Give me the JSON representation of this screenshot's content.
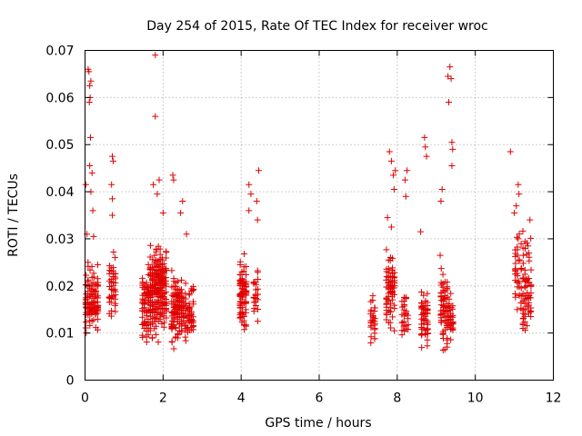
{
  "chart_data": {
    "type": "scatter",
    "title": "Day 254 of 2015, Rate Of TEC Index for receiver wroc",
    "xlabel": "GPS time / hours",
    "ylabel": "ROTI / TECUs",
    "xlim": [
      0,
      12
    ],
    "ylim": [
      0,
      0.07
    ],
    "x_ticks": [
      0,
      2,
      4,
      6,
      8,
      10,
      12
    ],
    "x_tick_labels": [
      "0",
      "2",
      "4",
      "6",
      "8",
      "10",
      "12"
    ],
    "y_ticks": [
      0,
      0.01,
      0.02,
      0.03,
      0.04,
      0.05,
      0.06,
      0.07
    ],
    "y_tick_labels": [
      "0",
      "0.01",
      "0.02",
      "0.03",
      "0.04",
      "0.05",
      "0.06",
      "0.07"
    ],
    "grid": true,
    "marker": "+",
    "color": "#e00000",
    "series": [
      {
        "name": "ROTI",
        "clusters": [
          {
            "x_range": [
              0.0,
              0.35
            ],
            "y_range": [
              0.007,
              0.027
            ],
            "count": 120
          },
          {
            "x_range": [
              0.6,
              0.8
            ],
            "y_range": [
              0.008,
              0.03
            ],
            "count": 45
          },
          {
            "x_range": [
              1.45,
              1.65
            ],
            "y_range": [
              0.005,
              0.028
            ],
            "count": 70
          },
          {
            "x_range": [
              1.65,
              2.1
            ],
            "y_range": [
              0.006,
              0.032
            ],
            "count": 260
          },
          {
            "x_range": [
              2.2,
              2.5
            ],
            "y_range": [
              0.005,
              0.025
            ],
            "count": 120
          },
          {
            "x_range": [
              2.5,
              2.8
            ],
            "y_range": [
              0.007,
              0.022
            ],
            "count": 70
          },
          {
            "x_range": [
              3.95,
              4.15
            ],
            "y_range": [
              0.008,
              0.028
            ],
            "count": 90
          },
          {
            "x_range": [
              4.3,
              4.45
            ],
            "y_range": [
              0.01,
              0.027
            ],
            "count": 25
          },
          {
            "x_range": [
              7.3,
              7.45
            ],
            "y_range": [
              0.006,
              0.019
            ],
            "count": 30
          },
          {
            "x_range": [
              7.7,
              7.95
            ],
            "y_range": [
              0.008,
              0.03
            ],
            "count": 80
          },
          {
            "x_range": [
              8.1,
              8.3
            ],
            "y_range": [
              0.007,
              0.02
            ],
            "count": 30
          },
          {
            "x_range": [
              8.6,
              8.8
            ],
            "y_range": [
              0.005,
              0.022
            ],
            "count": 60
          },
          {
            "x_range": [
              9.1,
              9.3
            ],
            "y_range": [
              0.004,
              0.026
            ],
            "count": 70
          },
          {
            "x_range": [
              9.3,
              9.45
            ],
            "y_range": [
              0.007,
              0.02
            ],
            "count": 30
          },
          {
            "x_range": [
              11.0,
              11.2
            ],
            "y_range": [
              0.01,
              0.035
            ],
            "count": 40
          },
          {
            "x_range": [
              11.2,
              11.45
            ],
            "y_range": [
              0.006,
              0.033
            ],
            "count": 70
          }
        ],
        "outliers": [
          [
            0.02,
            0.0415
          ],
          [
            0.08,
            0.066
          ],
          [
            0.1,
            0.0655
          ],
          [
            0.12,
            0.0625
          ],
          [
            0.13,
            0.06
          ],
          [
            0.15,
            0.0635
          ],
          [
            0.11,
            0.059
          ],
          [
            0.14,
            0.0515
          ],
          [
            0.12,
            0.0455
          ],
          [
            0.18,
            0.044
          ],
          [
            0.15,
            0.04
          ],
          [
            0.2,
            0.036
          ],
          [
            0.05,
            0.031
          ],
          [
            0.22,
            0.0305
          ],
          [
            0.7,
            0.0475
          ],
          [
            0.72,
            0.0465
          ],
          [
            0.68,
            0.0415
          ],
          [
            0.7,
            0.0385
          ],
          [
            0.7,
            0.035
          ],
          [
            1.8,
            0.069
          ],
          [
            1.8,
            0.056
          ],
          [
            1.75,
            0.0415
          ],
          [
            1.9,
            0.0425
          ],
          [
            1.85,
            0.0395
          ],
          [
            2.0,
            0.0355
          ],
          [
            2.25,
            0.0435
          ],
          [
            2.27,
            0.0425
          ],
          [
            2.5,
            0.038
          ],
          [
            2.45,
            0.0355
          ],
          [
            2.6,
            0.031
          ],
          [
            4.2,
            0.0415
          ],
          [
            4.25,
            0.0395
          ],
          [
            4.2,
            0.036
          ],
          [
            4.45,
            0.0445
          ],
          [
            4.4,
            0.038
          ],
          [
            4.42,
            0.034
          ],
          [
            7.8,
            0.0485
          ],
          [
            7.85,
            0.0465
          ],
          [
            7.9,
            0.0435
          ],
          [
            7.95,
            0.0445
          ],
          [
            7.92,
            0.0405
          ],
          [
            7.75,
            0.0345
          ],
          [
            7.85,
            0.0325
          ],
          [
            8.25,
            0.0445
          ],
          [
            8.2,
            0.0425
          ],
          [
            8.22,
            0.039
          ],
          [
            8.6,
            0.0315
          ],
          [
            8.7,
            0.0515
          ],
          [
            8.72,
            0.0495
          ],
          [
            8.75,
            0.0475
          ],
          [
            9.15,
            0.0405
          ],
          [
            9.12,
            0.038
          ],
          [
            9.35,
            0.0665
          ],
          [
            9.3,
            0.0645
          ],
          [
            9.38,
            0.064
          ],
          [
            9.32,
            0.059
          ],
          [
            9.4,
            0.0505
          ],
          [
            9.42,
            0.049
          ],
          [
            9.4,
            0.0455
          ],
          [
            9.1,
            0.0265
          ],
          [
            10.9,
            0.0485
          ],
          [
            11.1,
            0.0415
          ],
          [
            11.12,
            0.0395
          ],
          [
            11.0,
            0.0355
          ],
          [
            11.05,
            0.037
          ],
          [
            11.4,
            0.034
          ],
          [
            11.35,
            0.0285
          ],
          [
            11.1,
            0.03
          ]
        ]
      }
    ]
  }
}
